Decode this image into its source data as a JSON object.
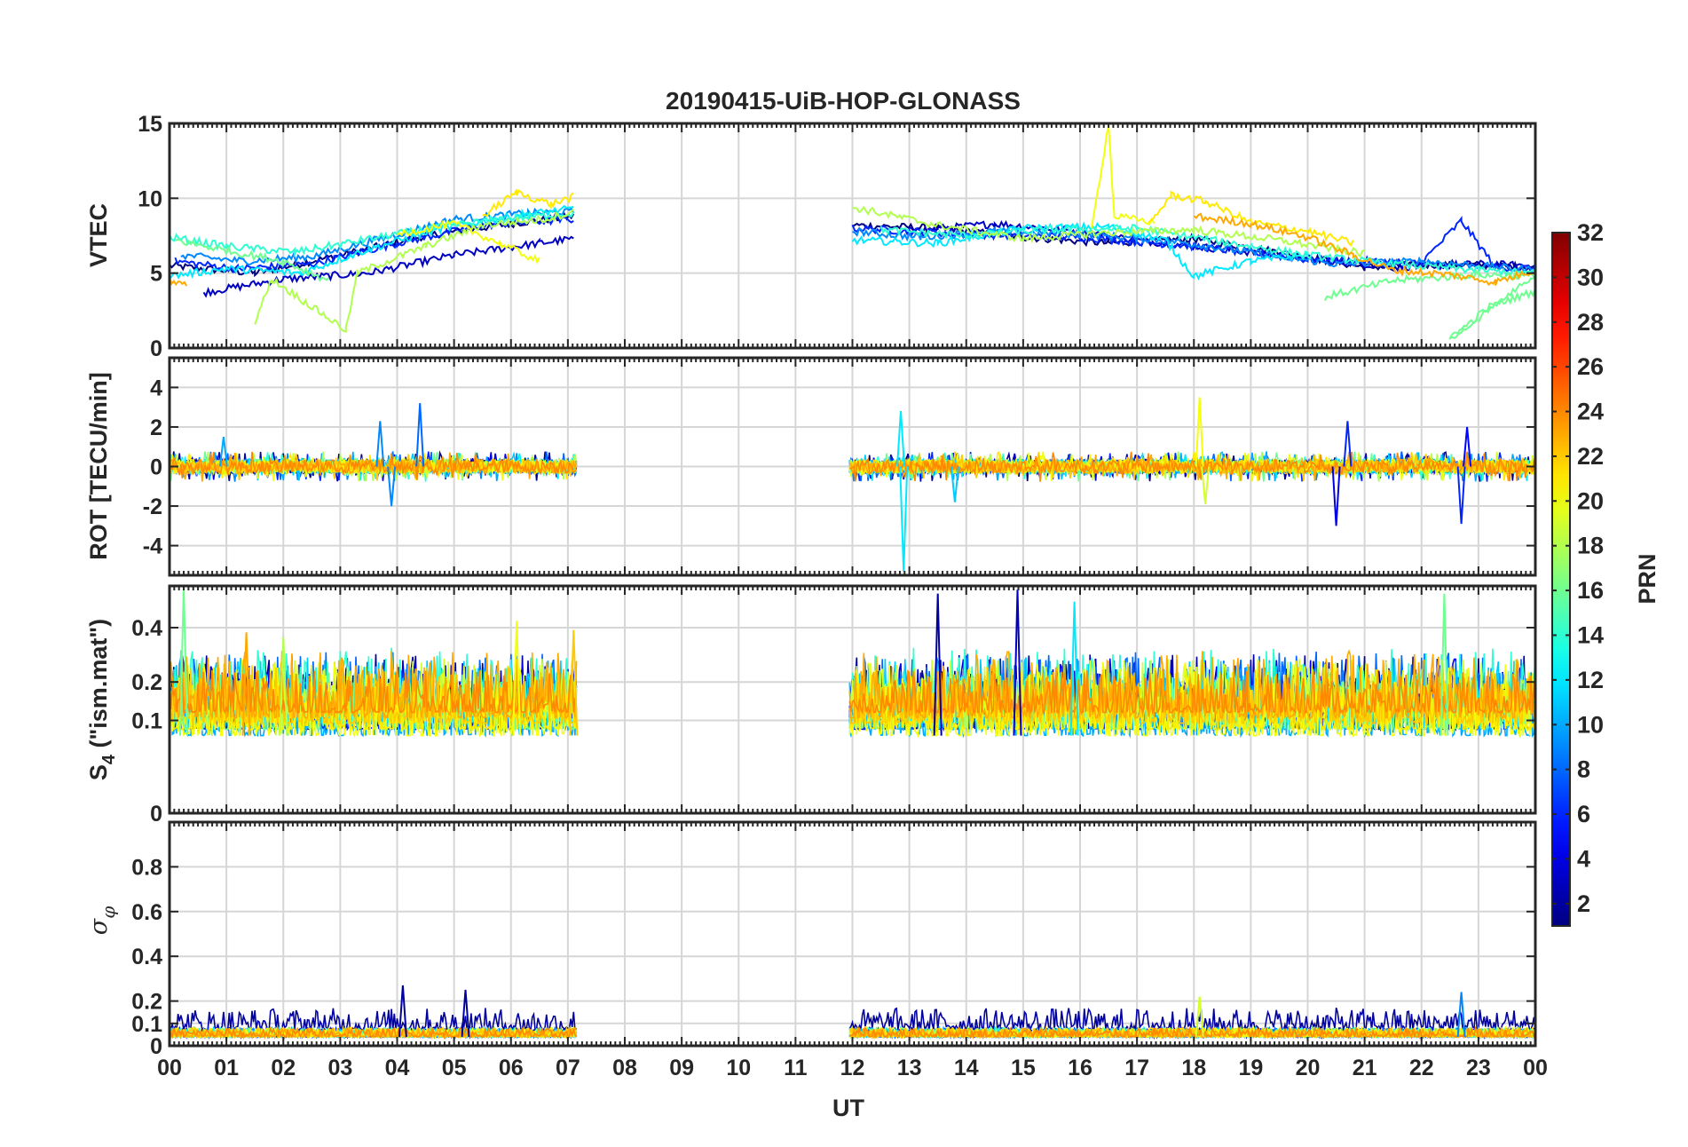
{
  "chart_data": {
    "type": "line",
    "title": "20190415-UiB-HOP-GLONASS",
    "xlabel": "UT",
    "x_range": [
      0,
      24
    ],
    "x_tick_labels": [
      "00",
      "01",
      "02",
      "03",
      "04",
      "05",
      "06",
      "07",
      "08",
      "09",
      "10",
      "11",
      "12",
      "13",
      "14",
      "15",
      "16",
      "17",
      "18",
      "19",
      "20",
      "21",
      "22",
      "23",
      "00"
    ],
    "grid": true,
    "data_gaps_hours": [
      [
        7.15,
        11.95
      ]
    ],
    "colorbar": {
      "label": "PRN",
      "range": [
        1,
        32
      ],
      "tick_labels": [
        "2",
        "4",
        "6",
        "8",
        "10",
        "12",
        "14",
        "16",
        "18",
        "20",
        "22",
        "24",
        "26",
        "28",
        "30",
        "32"
      ],
      "colormap": "jet"
    },
    "panels": [
      {
        "id": "vtec",
        "ylabel": "VTEC",
        "ylim": [
          0,
          15
        ],
        "y_ticks": [
          0,
          5,
          10,
          15
        ],
        "y_tick_labels": [
          "0",
          "5",
          "10",
          "15"
        ],
        "series": [
          {
            "prn": 1,
            "points": [
              [
                0.0,
                5.5
              ],
              [
                1.5,
                5.0
              ],
              [
                3.0,
                6.2
              ],
              [
                4.5,
                7.5
              ],
              [
                6.0,
                8.3
              ],
              [
                7.1,
                8.8
              ],
              [
                12.0,
                8.2
              ],
              [
                13.5,
                8.0
              ],
              [
                15.0,
                7.4
              ],
              [
                16.5,
                7.0
              ],
              [
                18.0,
                7.3
              ],
              [
                19.5,
                6.4
              ],
              [
                21.0,
                5.4
              ],
              [
                22.5,
                5.6
              ],
              [
                24.0,
                5.4
              ]
            ]
          },
          {
            "prn": 3,
            "points": [
              [
                0.6,
                3.7
              ],
              [
                2.0,
                4.6
              ],
              [
                3.5,
                5.0
              ],
              [
                5.0,
                6.2
              ],
              [
                6.5,
                7.0
              ],
              [
                7.1,
                7.3
              ],
              [
                13.0,
                7.8
              ],
              [
                14.5,
                8.3
              ],
              [
                16.0,
                7.8
              ],
              [
                17.0,
                7.2
              ],
              [
                18.5,
                6.6
              ],
              [
                20.0,
                6.0
              ],
              [
                21.5,
                5.4
              ],
              [
                23.0,
                5.6
              ],
              [
                24.0,
                5.5
              ]
            ]
          },
          {
            "prn": 6,
            "points": [
              [
                0.1,
                5.8
              ],
              [
                1.2,
                5.3
              ],
              [
                2.5,
                5.6
              ],
              [
                4.0,
                7.0
              ],
              [
                5.5,
                8.2
              ],
              [
                7.1,
                8.6
              ],
              [
                12.0,
                8.0
              ],
              [
                14.0,
                7.6
              ],
              [
                16.0,
                7.4
              ],
              [
                18.0,
                6.8
              ],
              [
                20.0,
                5.9
              ],
              [
                22.0,
                5.7
              ],
              [
                22.7,
                8.5
              ],
              [
                23.3,
                5.4
              ],
              [
                24.0,
                5.3
              ]
            ]
          },
          {
            "prn": 9,
            "points": [
              [
                0.2,
                6.2
              ],
              [
                1.3,
                5.8
              ],
              [
                2.5,
                6.1
              ],
              [
                3.8,
                7.4
              ],
              [
                5.0,
                8.6
              ],
              [
                6.3,
                9.0
              ],
              [
                7.1,
                9.1
              ],
              [
                12.0,
                7.8
              ],
              [
                13.2,
                7.4
              ],
              [
                14.5,
                7.8
              ],
              [
                16.0,
                7.6
              ],
              [
                17.5,
                7.2
              ],
              [
                19.0,
                6.4
              ],
              [
                20.5,
                5.6
              ],
              [
                22.0,
                5.8
              ],
              [
                24.0,
                5.2
              ]
            ]
          },
          {
            "prn": 12,
            "points": [
              [
                0.0,
                4.8
              ],
              [
                1.0,
                5.3
              ],
              [
                2.3,
                5.0
              ],
              [
                3.5,
                6.6
              ],
              [
                4.8,
                8.0
              ],
              [
                6.2,
                8.9
              ],
              [
                7.1,
                9.3
              ],
              [
                12.0,
                7.2
              ],
              [
                13.5,
                7.0
              ],
              [
                15.0,
                8.0
              ],
              [
                16.5,
                8.1
              ],
              [
                17.5,
                7.2
              ],
              [
                18.0,
                4.8
              ],
              [
                19.0,
                5.8
              ],
              [
                20.0,
                6.2
              ]
            ]
          },
          {
            "prn": 14,
            "points": [
              [
                0.0,
                7.4
              ],
              [
                1.0,
                6.8
              ],
              [
                2.2,
                6.4
              ],
              [
                3.4,
                7.2
              ],
              [
                4.6,
                8.0
              ],
              [
                5.8,
                8.6
              ],
              [
                7.1,
                9.0
              ],
              [
                12.5,
                7.9
              ],
              [
                14.0,
                7.5
              ],
              [
                15.5,
                7.9
              ],
              [
                17.0,
                8.0
              ],
              [
                18.5,
                7.1
              ],
              [
                20.0,
                6.2
              ],
              [
                21.5,
                5.6
              ],
              [
                23.0,
                5.2
              ],
              [
                24.0,
                5.0
              ]
            ]
          },
          {
            "prn": 16,
            "points": [
              [
                0.1,
                7.2
              ],
              [
                1.0,
                6.5
              ],
              [
                2.0,
                5.8
              ],
              [
                2.8,
                4.5
              ],
              [
                20.3,
                3.4
              ],
              [
                21.5,
                4.5
              ],
              [
                23.0,
                4.9
              ],
              [
                24.0,
                4.8
              ],
              [
                22.5,
                0.6
              ],
              [
                23.2,
                2.8
              ],
              [
                24.0,
                3.8
              ]
            ]
          },
          {
            "prn": 18,
            "points": [
              [
                1.5,
                1.8
              ],
              [
                1.8,
                4.6
              ],
              [
                3.1,
                1.2
              ],
              [
                3.3,
                5.0
              ],
              [
                4.5,
                6.8
              ],
              [
                5.5,
                8.2
              ],
              [
                6.6,
                8.6
              ],
              [
                7.1,
                9.1
              ],
              [
                12.0,
                9.4
              ],
              [
                13.5,
                8.2
              ],
              [
                15.0,
                7.3
              ],
              [
                16.5,
                7.7
              ],
              [
                18.0,
                7.9
              ],
              [
                19.5,
                7.2
              ],
              [
                21.0,
                6.3
              ]
            ]
          },
          {
            "prn": 20,
            "points": [
              [
                4.0,
                7.6
              ],
              [
                5.0,
                8.3
              ],
              [
                5.8,
                7.0
              ],
              [
                6.5,
                5.8
              ],
              [
                16.2,
                7.8
              ],
              [
                16.5,
                15.0
              ],
              [
                16.6,
                8.8
              ],
              [
                17.3,
                8.4
              ]
            ]
          },
          {
            "prn": 21,
            "points": [
              [
                5.5,
                8.8
              ],
              [
                6.1,
                10.4
              ],
              [
                6.7,
                9.6
              ],
              [
                7.1,
                10.1
              ],
              [
                17.2,
                8.2
              ],
              [
                17.6,
                10.2
              ],
              [
                18.2,
                9.8
              ],
              [
                19.0,
                8.4
              ],
              [
                20.0,
                7.8
              ],
              [
                20.8,
                7.0
              ]
            ]
          },
          {
            "prn": 23,
            "points": [
              [
                0.0,
                4.5
              ],
              [
                0.3,
                4.2
              ],
              [
                18.0,
                8.8
              ],
              [
                19.0,
                8.3
              ],
              [
                20.0,
                7.4
              ],
              [
                20.8,
                6.2
              ],
              [
                21.5,
                5.2
              ],
              [
                22.5,
                4.9
              ],
              [
                23.3,
                4.4
              ],
              [
                24.0,
                5.2
              ]
            ]
          }
        ]
      },
      {
        "id": "rot",
        "ylabel": "ROT [TECU/min]",
        "ylim": [
          -5.5,
          5.5
        ],
        "y_ticks": [
          -4,
          -2,
          0,
          2,
          4
        ],
        "y_tick_labels": [
          "-4",
          "-2",
          "0",
          "2",
          "4"
        ],
        "spikes": [
          {
            "prn": 10,
            "t": 0.95,
            "v": 1.5
          },
          {
            "prn": 9,
            "t": 3.7,
            "v": 2.3
          },
          {
            "prn": 9,
            "t": 3.9,
            "v": -2.0
          },
          {
            "prn": 8,
            "t": 4.4,
            "v": 3.2
          },
          {
            "prn": 12,
            "t": 12.85,
            "v": 2.8
          },
          {
            "prn": 12,
            "t": 12.9,
            "v": -5.3
          },
          {
            "prn": 11,
            "t": 13.8,
            "v": -1.8
          },
          {
            "prn": 20,
            "t": 18.1,
            "v": 3.5
          },
          {
            "prn": 19,
            "t": 18.2,
            "v": -1.9
          },
          {
            "prn": 4,
            "t": 20.5,
            "v": -3.0
          },
          {
            "prn": 6,
            "t": 20.7,
            "v": 2.3
          },
          {
            "prn": 6,
            "t": 22.7,
            "v": -2.9
          },
          {
            "prn": 5,
            "t": 22.8,
            "v": 2.0
          }
        ],
        "noise_envelope": 0.7
      },
      {
        "id": "s4",
        "ylabel": "S4 (\"ism.mat\")",
        "ylabel_main": "S",
        "ylabel_sub": "4",
        "ylabel_rest": " (\"ism.mat\")",
        "ylim": [
          0,
          0.6
        ],
        "y_scale": "sqrt",
        "y_ticks": [
          0,
          0.1,
          0.2,
          0.4
        ],
        "y_tick_labels": [
          "0",
          "0.1",
          "0.2",
          "0.4"
        ],
        "peaks": [
          {
            "prn": 16,
            "t": 0.25,
            "v": 0.6
          },
          {
            "prn": 23,
            "t": 1.35,
            "v": 0.38
          },
          {
            "prn": 18,
            "t": 2.0,
            "v": 0.36
          },
          {
            "prn": 20,
            "t": 6.1,
            "v": 0.43
          },
          {
            "prn": 22,
            "t": 7.1,
            "v": 0.39
          },
          {
            "prn": 2,
            "t": 13.5,
            "v": 0.56
          },
          {
            "prn": 3,
            "t": 14.9,
            "v": 0.58
          },
          {
            "prn": 12,
            "t": 15.9,
            "v": 0.52
          },
          {
            "prn": 16,
            "t": 22.4,
            "v": 0.56
          }
        ],
        "baseline": 0.07
      },
      {
        "id": "sigma_phi",
        "ylabel": "σ φ",
        "ylabel_main": "σ",
        "ylabel_sub": "φ",
        "ylim": [
          0,
          1.0
        ],
        "y_ticks": [
          0,
          0.1,
          0.2,
          0.4,
          0.6,
          0.8
        ],
        "y_tick_labels": [
          "0",
          "0.1",
          "0.2",
          "0.4",
          "0.6",
          "0.8"
        ],
        "peaks": [
          {
            "prn": 2,
            "t": 4.1,
            "v": 0.27
          },
          {
            "prn": 2,
            "t": 5.2,
            "v": 0.25
          },
          {
            "prn": 19,
            "t": 18.1,
            "v": 0.22
          },
          {
            "prn": 9,
            "t": 22.7,
            "v": 0.24
          }
        ],
        "baseline": 0.04
      }
    ]
  }
}
